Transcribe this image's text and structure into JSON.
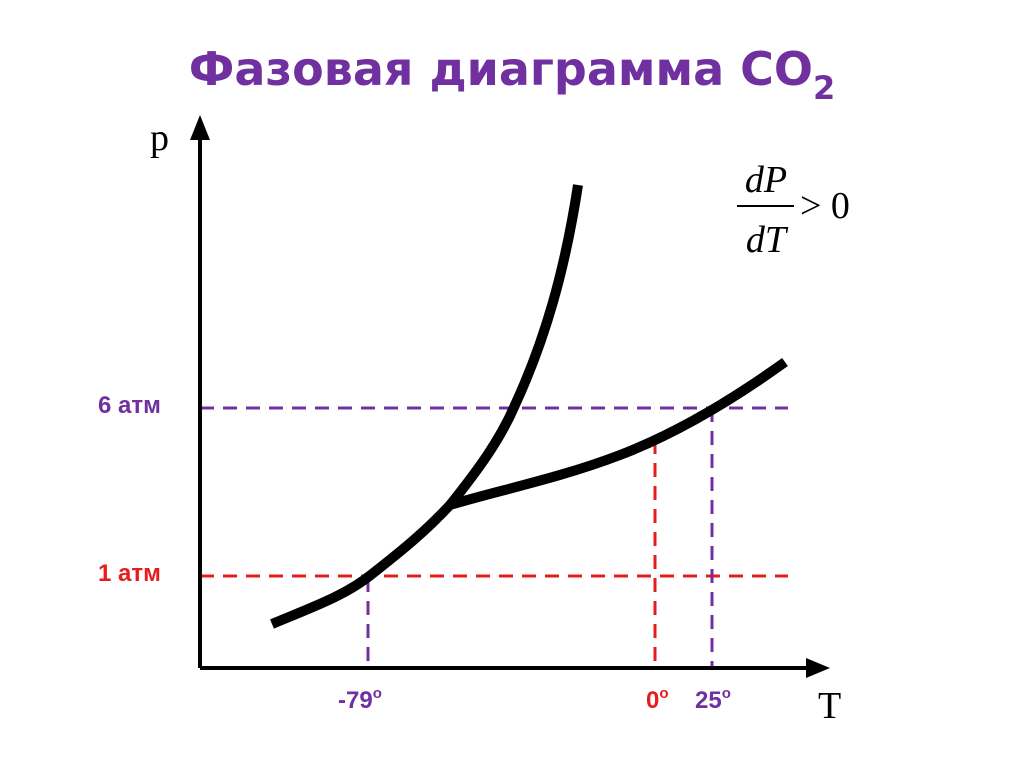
{
  "title": {
    "text": "Фазовая диаграмма CO",
    "subscript": "2"
  },
  "axes": {
    "y_label": "p",
    "x_label": "T"
  },
  "formula": {
    "numerator": "dP",
    "denominator": "dT",
    "relation": "> 0"
  },
  "pressure_labels": [
    "6 атм",
    "1 атм"
  ],
  "temperature_labels": [
    {
      "text": "-79",
      "sup": "o"
    },
    {
      "text": "0",
      "sup": "o"
    },
    {
      "text": "25",
      "sup": "o"
    }
  ]
}
